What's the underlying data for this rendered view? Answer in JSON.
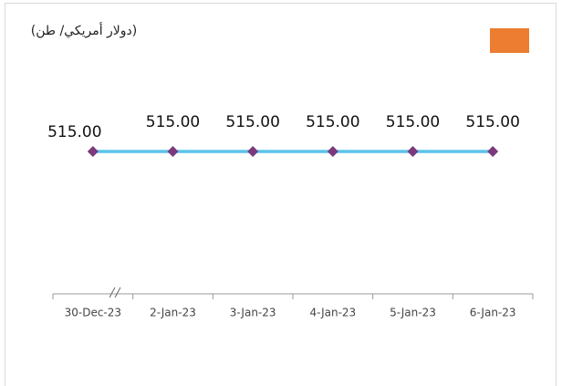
{
  "chart_data": {
    "type": "line",
    "title": "(دولار أمريكي/ طن)",
    "categories": [
      "30-Dec-23",
      "2-Jan-23",
      "3-Jan-23",
      "4-Jan-23",
      "5-Jan-23",
      "6-Jan-23"
    ],
    "series": [
      {
        "color": "#5bc3ea",
        "marker_color": "#7b3a7b",
        "values": [
          515,
          515,
          515,
          515,
          515,
          515
        ],
        "value_labels": [
          "515.00",
          "515.00",
          "515.00",
          "515.00",
          "515.00",
          "515.00"
        ]
      }
    ],
    "legend_swatch_color": "#ed7d31",
    "ylim": [
      0,
      1000
    ]
  }
}
